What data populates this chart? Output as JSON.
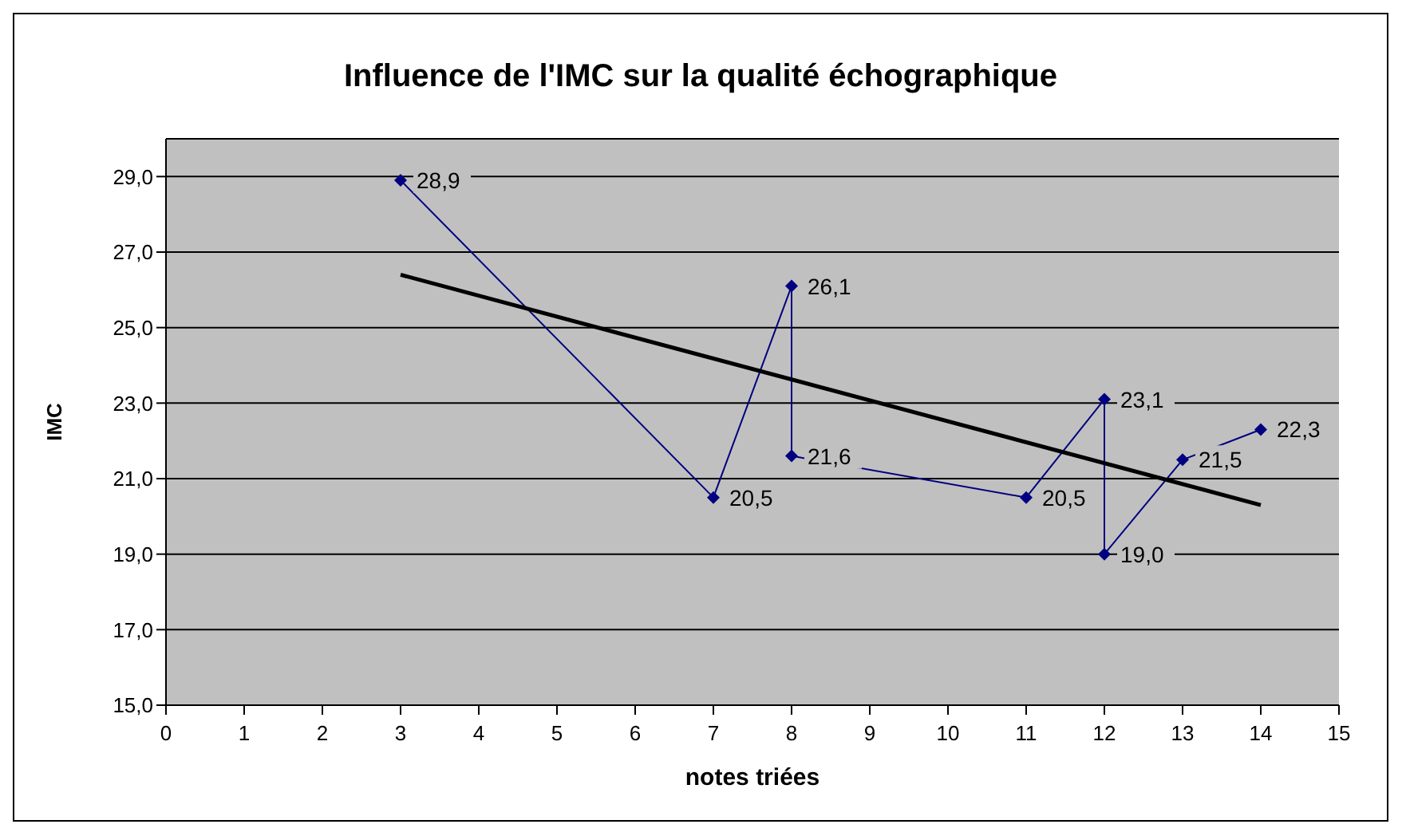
{
  "chart_data": {
    "type": "line",
    "title": "Influence de l'IMC sur la qualité échographique",
    "xlabel": "notes triées",
    "ylabel": "IMC",
    "xlim": [
      0,
      15
    ],
    "xticks": [
      0,
      1,
      2,
      3,
      4,
      5,
      6,
      7,
      8,
      9,
      10,
      11,
      12,
      13,
      14,
      15
    ],
    "ylim": [
      15,
      30
    ],
    "yticks": [
      {
        "value": 15,
        "label": "15,0"
      },
      {
        "value": 17,
        "label": "17,0"
      },
      {
        "value": 19,
        "label": "19,0"
      },
      {
        "value": 21,
        "label": "21,0"
      },
      {
        "value": 23,
        "label": "23,0"
      },
      {
        "value": 25,
        "label": "25,0"
      },
      {
        "value": 27,
        "label": "27,0"
      },
      {
        "value": 29,
        "label": "29,0"
      }
    ],
    "grid": "y",
    "series": [
      {
        "color": "#000080",
        "marker": "diamond",
        "x": [
          3,
          7,
          8,
          8,
          11,
          12,
          12,
          13,
          14
        ],
        "values": [
          28.9,
          20.5,
          26.1,
          21.6,
          20.5,
          23.1,
          19.0,
          21.5,
          22.3
        ],
        "value_labels": [
          "28,9",
          "20,5",
          "26,1",
          "21,6",
          "20,5",
          "23,1",
          "19,0",
          "21,5",
          "22,3"
        ]
      },
      {
        "color": "#000000",
        "marker": "none",
        "x": [
          3,
          14
        ],
        "values": [
          26.4,
          20.3
        ]
      }
    ]
  }
}
